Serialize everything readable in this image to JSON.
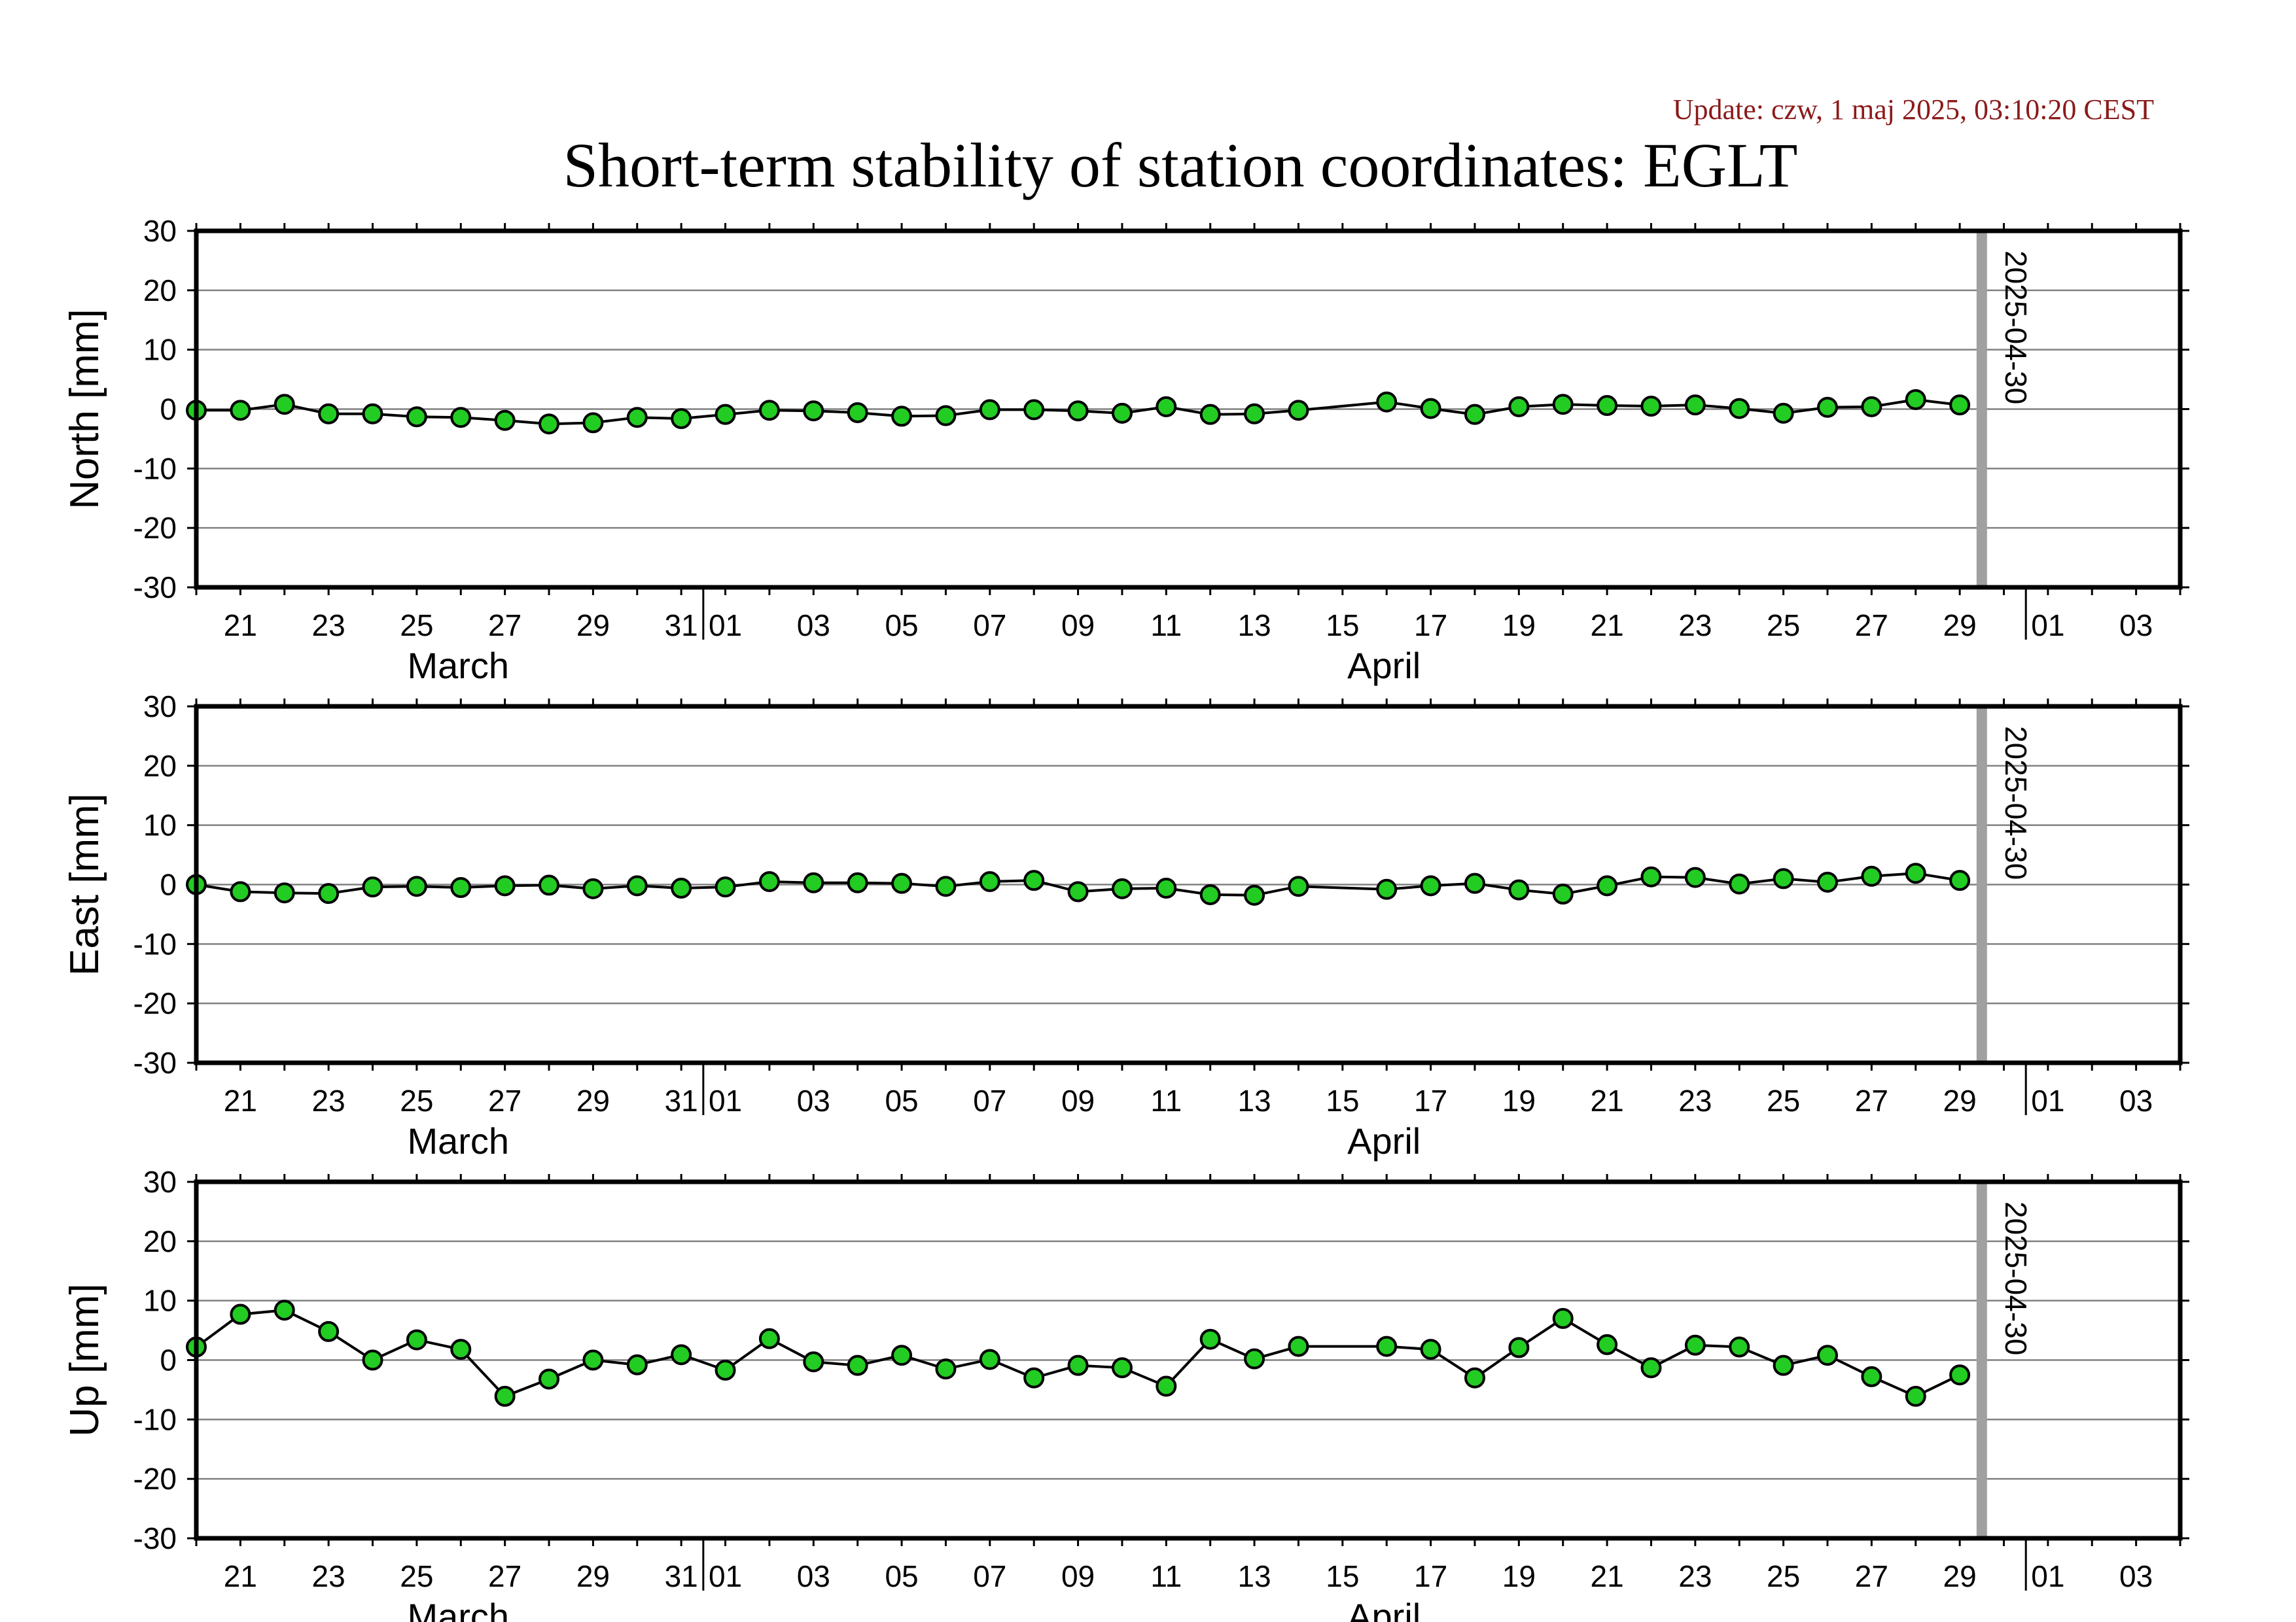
{
  "update_text": "Update: czw, 1 maj 2025, 03:10:20 CEST",
  "title": "Short-term stability of station coordinates: EGLT",
  "colors": {
    "update": "#8b1a1a",
    "marker_fill": "#22cc22",
    "marker_stroke": "#000000",
    "line": "#000000",
    "gridline": "#808080",
    "marker_band": "#a0a0a0"
  },
  "chart_data": [
    {
      "type": "line",
      "ylabel": "North [mm]",
      "ylim": [
        -30,
        30
      ],
      "y_ticks": [
        "30",
        "20",
        "10",
        "0",
        "-10",
        "-20",
        "-30"
      ],
      "x_range": [
        "2025-03-20",
        "2025-05-04"
      ],
      "x_tick_labels": [
        "21",
        "23",
        "25",
        "27",
        "29",
        "31",
        "01",
        "03",
        "05",
        "07",
        "09",
        "11",
        "13",
        "15",
        "17",
        "19",
        "21",
        "23",
        "25",
        "27",
        "29",
        "01",
        "03"
      ],
      "month_labels": [
        "March",
        "April"
      ],
      "grid": true,
      "marker_label": "2025-04-30",
      "series": [
        {
          "x": [
            "2025-03-20",
            "2025-03-21",
            "2025-03-22",
            "2025-03-23",
            "2025-03-24",
            "2025-03-25",
            "2025-03-26",
            "2025-03-27",
            "2025-03-28",
            "2025-03-29",
            "2025-03-30",
            "2025-03-31",
            "2025-04-01",
            "2025-04-02",
            "2025-04-03",
            "2025-04-04",
            "2025-04-05",
            "2025-04-06",
            "2025-04-07",
            "2025-04-08",
            "2025-04-09",
            "2025-04-10",
            "2025-04-11",
            "2025-04-12",
            "2025-04-13",
            "2025-04-14",
            "2025-04-16",
            "2025-04-17",
            "2025-04-18",
            "2025-04-19",
            "2025-04-20",
            "2025-04-21",
            "2025-04-22",
            "2025-04-23",
            "2025-04-24",
            "2025-04-25",
            "2025-04-26",
            "2025-04-27",
            "2025-04-28",
            "2025-04-29"
          ],
          "y": [
            -0.2,
            -0.2,
            0.8,
            -0.8,
            -0.8,
            -1.3,
            -1.4,
            -1.9,
            -2.5,
            -2.3,
            -1.4,
            -1.6,
            -0.9,
            -0.2,
            -0.3,
            -0.6,
            -1.2,
            -1.1,
            -0.1,
            -0.1,
            -0.3,
            -0.7,
            0.4,
            -0.9,
            -0.8,
            -0.2,
            1.2,
            0.1,
            -0.9,
            0.4,
            0.8,
            0.6,
            0.5,
            0.7,
            0.1,
            -0.7,
            0.3,
            0.4,
            1.6,
            0.7
          ]
        }
      ]
    },
    {
      "type": "line",
      "ylabel": "East [mm]",
      "ylim": [
        -30,
        30
      ],
      "y_ticks": [
        "30",
        "20",
        "10",
        "0",
        "-10",
        "-20",
        "-30"
      ],
      "x_range": [
        "2025-03-20",
        "2025-05-04"
      ],
      "x_tick_labels": [
        "21",
        "23",
        "25",
        "27",
        "29",
        "31",
        "01",
        "03",
        "05",
        "07",
        "09",
        "11",
        "13",
        "15",
        "17",
        "19",
        "21",
        "23",
        "25",
        "27",
        "29",
        "01",
        "03"
      ],
      "month_labels": [
        "March",
        "April"
      ],
      "grid": true,
      "marker_label": "2025-04-30",
      "series": [
        {
          "x": [
            "2025-03-20",
            "2025-03-21",
            "2025-03-22",
            "2025-03-23",
            "2025-03-24",
            "2025-03-25",
            "2025-03-26",
            "2025-03-27",
            "2025-03-28",
            "2025-03-29",
            "2025-03-30",
            "2025-03-31",
            "2025-04-01",
            "2025-04-02",
            "2025-04-03",
            "2025-04-04",
            "2025-04-05",
            "2025-04-06",
            "2025-04-07",
            "2025-04-08",
            "2025-04-09",
            "2025-04-10",
            "2025-04-11",
            "2025-04-12",
            "2025-04-13",
            "2025-04-14",
            "2025-04-16",
            "2025-04-17",
            "2025-04-18",
            "2025-04-19",
            "2025-04-20",
            "2025-04-21",
            "2025-04-22",
            "2025-04-23",
            "2025-04-24",
            "2025-04-25",
            "2025-04-26",
            "2025-04-27",
            "2025-04-28",
            "2025-04-29"
          ],
          "y": [
            0.0,
            -1.2,
            -1.4,
            -1.5,
            -0.4,
            -0.3,
            -0.5,
            -0.2,
            -0.1,
            -0.7,
            -0.2,
            -0.6,
            -0.4,
            0.5,
            0.3,
            0.3,
            0.2,
            -0.3,
            0.5,
            0.7,
            -1.2,
            -0.7,
            -0.6,
            -1.7,
            -1.8,
            -0.3,
            -0.8,
            -0.2,
            0.2,
            -0.9,
            -1.6,
            -0.2,
            1.3,
            1.2,
            0.1,
            1.0,
            0.4,
            1.4,
            1.9,
            0.7
          ]
        }
      ]
    },
    {
      "type": "line",
      "ylabel": "Up [mm]",
      "ylim": [
        -30,
        30
      ],
      "y_ticks": [
        "30",
        "20",
        "10",
        "0",
        "-10",
        "-20",
        "-30"
      ],
      "x_range": [
        "2025-03-20",
        "2025-05-04"
      ],
      "x_tick_labels": [
        "21",
        "23",
        "25",
        "27",
        "29",
        "31",
        "01",
        "03",
        "05",
        "07",
        "09",
        "11",
        "13",
        "15",
        "17",
        "19",
        "21",
        "23",
        "25",
        "27",
        "29",
        "01",
        "03"
      ],
      "month_labels": [
        "March",
        "April"
      ],
      "grid": true,
      "marker_label": "2025-04-30",
      "series": [
        {
          "x": [
            "2025-03-20",
            "2025-03-21",
            "2025-03-22",
            "2025-03-23",
            "2025-03-24",
            "2025-03-25",
            "2025-03-26",
            "2025-03-27",
            "2025-03-28",
            "2025-03-29",
            "2025-03-30",
            "2025-03-31",
            "2025-04-01",
            "2025-04-02",
            "2025-04-03",
            "2025-04-04",
            "2025-04-05",
            "2025-04-06",
            "2025-04-07",
            "2025-04-08",
            "2025-04-09",
            "2025-04-10",
            "2025-04-11",
            "2025-04-12",
            "2025-04-13",
            "2025-04-14",
            "2025-04-16",
            "2025-04-17",
            "2025-04-18",
            "2025-04-19",
            "2025-04-20",
            "2025-04-21",
            "2025-04-22",
            "2025-04-23",
            "2025-04-24",
            "2025-04-25",
            "2025-04-26",
            "2025-04-27",
            "2025-04-28",
            "2025-04-29"
          ],
          "y": [
            2.2,
            7.7,
            8.4,
            4.8,
            0.0,
            3.4,
            1.8,
            -6.1,
            -3.2,
            0.0,
            -0.8,
            0.9,
            -1.7,
            3.6,
            -0.3,
            -0.9,
            0.8,
            -1.5,
            0.1,
            -3.0,
            -0.9,
            -1.3,
            -4.4,
            3.5,
            0.2,
            2.3,
            2.3,
            1.8,
            -3.0,
            2.1,
            7.0,
            2.6,
            -1.3,
            2.5,
            2.2,
            -0.9,
            0.8,
            -2.8,
            -6.1,
            -2.5
          ]
        }
      ]
    }
  ]
}
